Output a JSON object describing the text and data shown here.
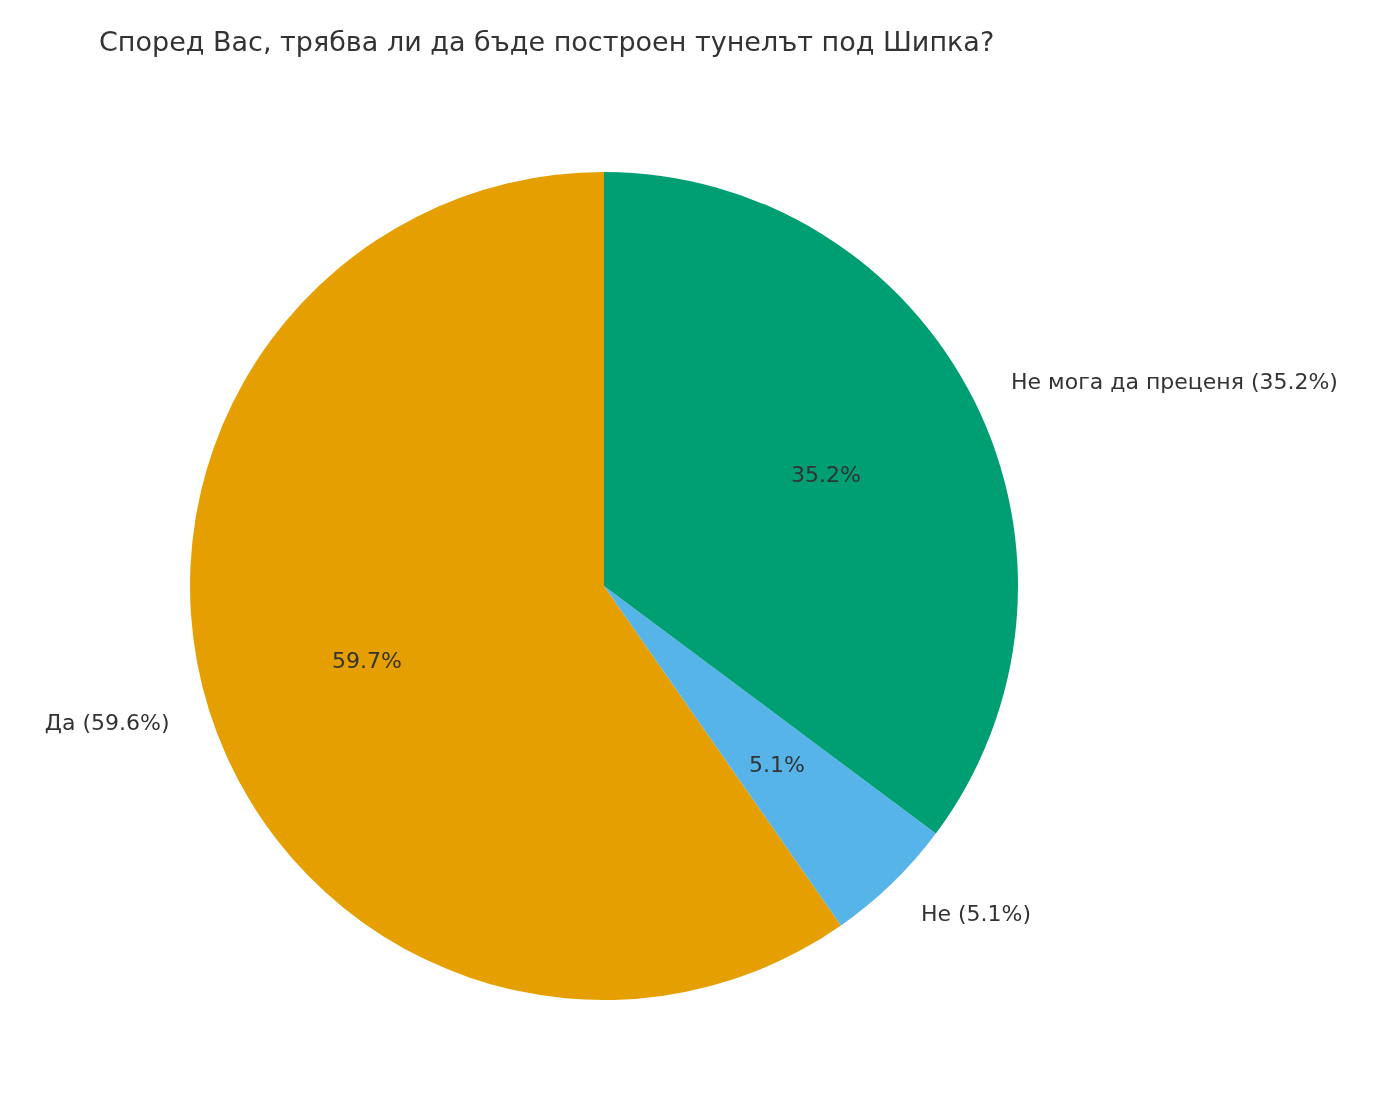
{
  "chart_data": {
    "type": "pie",
    "title": "Според Вас, трябва ли да бъде построен тунелът под Шипка?",
    "categories": [
      "Да (59.6%)",
      "Не (5.1%)",
      "Не мога да преценя (35.2%)"
    ],
    "values": [
      59.7,
      5.1,
      35.2
    ],
    "colors": [
      "#e69f00",
      "#56b4e9",
      "#009e73"
    ],
    "value_labels": [
      "59.7%",
      "5.1%",
      "35.2%"
    ]
  }
}
